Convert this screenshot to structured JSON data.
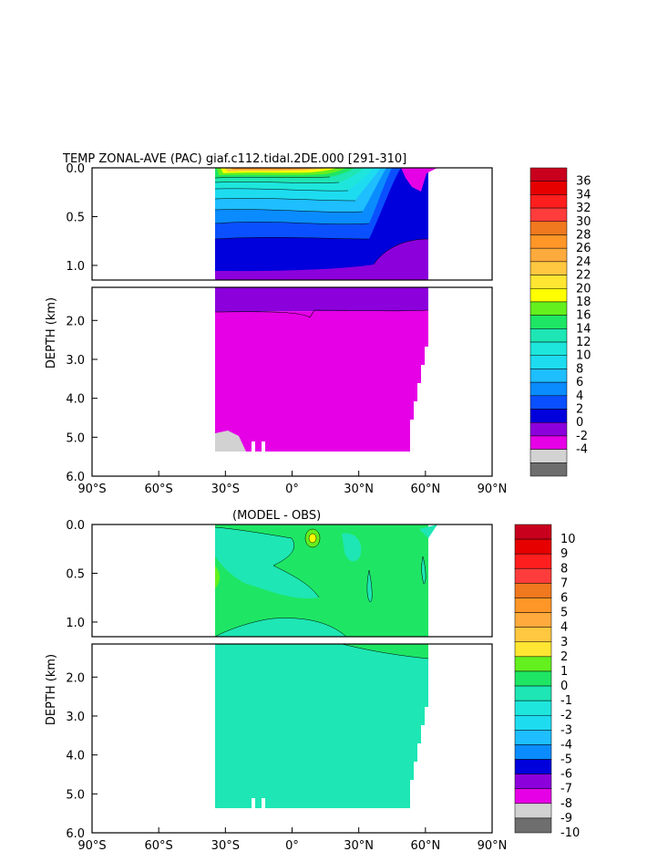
{
  "figure": {
    "title": "TEMP ZONAL-AVE (PAC) giaf.c112.tidal.2DE.000 [291-310]",
    "subtitle": "(MODEL - OBS)",
    "ylabel": "DEPTH (km)",
    "x_ticks": [
      "90°S",
      "60°S",
      "30°S",
      "0°",
      "30°N",
      "60°N",
      "90°N"
    ],
    "y_ticks_upper": [
      "0.0",
      "0.5",
      "1.0"
    ],
    "y_ticks_lower": [
      "2.0",
      "3.0",
      "4.0",
      "5.0",
      "6.0"
    ]
  },
  "chart_data": [
    {
      "type": "heatmap",
      "title": "TEMP ZONAL-AVE (PAC) giaf.c112.tidal.2DE.000 [291-310]",
      "xlabel": "",
      "ylabel": "DEPTH (km)",
      "xlim": [
        -90,
        90
      ],
      "ylim_km": [
        6.0,
        0.0
      ],
      "y_break_km": 1.15,
      "colorbar": {
        "labels": [
          "36",
          "34",
          "32",
          "30",
          "28",
          "26",
          "24",
          "22",
          "20",
          "18",
          "16",
          "14",
          "12",
          "10",
          "8",
          "6",
          "4",
          "2",
          "0",
          "-2",
          "-4"
        ],
        "colors": [
          "#c8001e",
          "#e60000",
          "#ff1e1e",
          "#ff3c3c",
          "#f0781e",
          "#ff9628",
          "#ffaa3c",
          "#ffc840",
          "#ffe632",
          "#ffff00",
          "#64f01e",
          "#1ee664",
          "#1ee6b4",
          "#1ee6dc",
          "#1edcf0",
          "#1ebeff",
          "#0a8cff",
          "#0a50ff",
          "#0000dc",
          "#8c00dc",
          "#e600e6",
          "#d2d2d2",
          "#6e6e6e"
        ]
      },
      "annotations": [
        "warm surface core near 0°",
        "cold bottom water below 2 km",
        "land/bathymetry gray patch near 30°S at 5.0 km"
      ]
    },
    {
      "type": "heatmap",
      "title": "(MODEL - OBS)",
      "xlabel": "",
      "ylabel": "DEPTH (km)",
      "xlim": [
        -90,
        90
      ],
      "ylim_km": [
        6.0,
        0.0
      ],
      "y_break_km": 1.15,
      "colorbar": {
        "labels": [
          "10",
          "9",
          "8",
          "7",
          "6",
          "5",
          "4",
          "3",
          "2",
          "1",
          "0",
          "-1",
          "-2",
          "-3",
          "-4",
          "-5",
          "-6",
          "-7",
          "-8",
          "-9",
          "-10"
        ],
        "colors": [
          "#c8001e",
          "#e60000",
          "#ff1e1e",
          "#ff3c3c",
          "#f0781e",
          "#ff9628",
          "#ffaa3c",
          "#ffc840",
          "#ffe632",
          "#64f01e",
          "#1ee664",
          "#1ee6b4",
          "#1ee6dc",
          "#1edcf0",
          "#1ebeff",
          "#0a8cff",
          "#0000dc",
          "#8c00dc",
          "#e600e6",
          "#d2d2d2",
          "#6e6e6e"
        ]
      },
      "annotations": [
        "small positive anomaly near 10°N at 0.15 km"
      ]
    }
  ]
}
